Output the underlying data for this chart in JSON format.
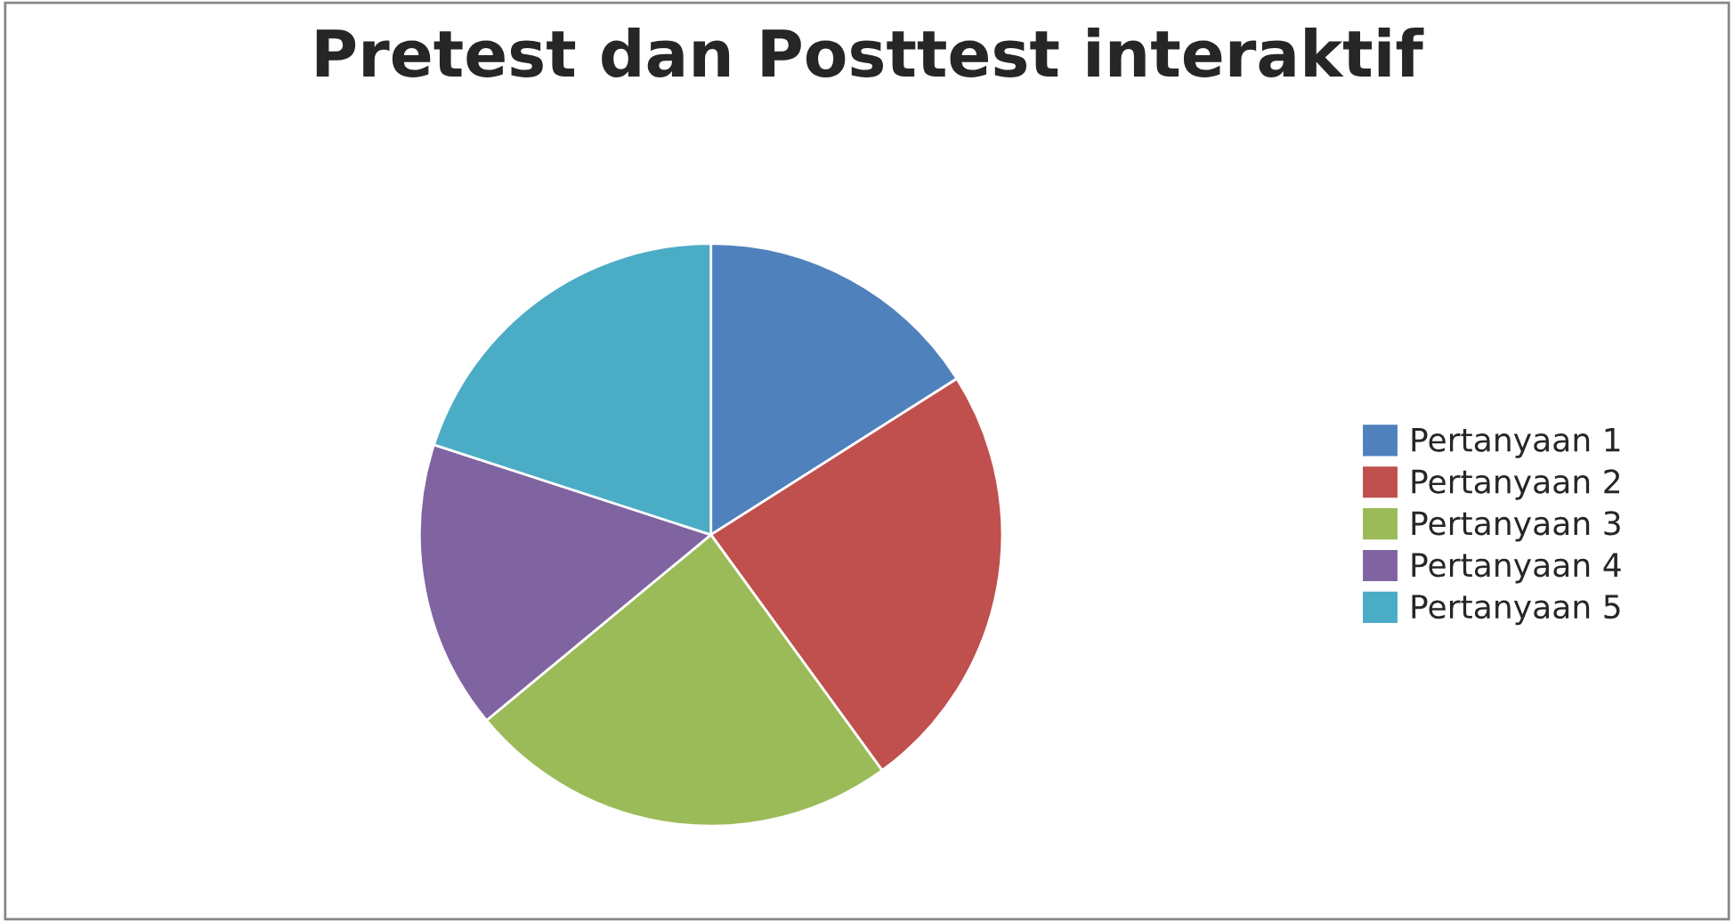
{
  "chart_data": {
    "type": "pie",
    "title": "Pretest dan Posttest interaktif",
    "categories": [
      "Pertanyaan 1",
      "Pertanyaan 2",
      "Pertanyaan 3",
      "Pertanyaan 4",
      "Pertanyaan 5"
    ],
    "values": [
      16,
      24,
      24,
      16,
      20
    ],
    "colors": [
      "#4f81bd",
      "#c0504d",
      "#9bbb59",
      "#8064a2",
      "#4bacc6"
    ],
    "legend": "right"
  }
}
